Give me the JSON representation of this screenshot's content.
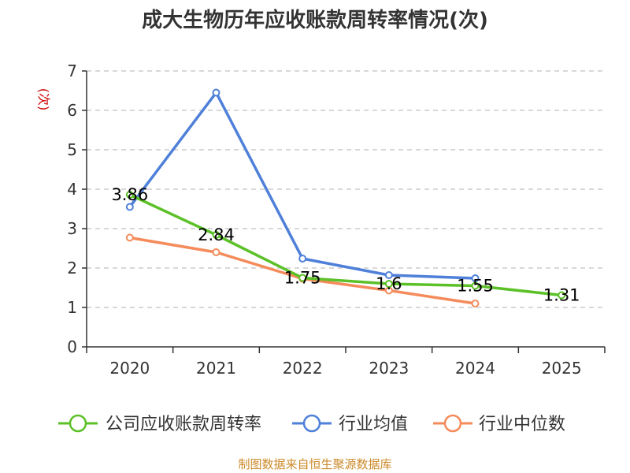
{
  "chart_data": {
    "type": "line",
    "title": "成大生物历年应收账款周转率情况(次)",
    "ylabel": "(次)",
    "xlabel": "",
    "categories": [
      "2020",
      "2021",
      "2022",
      "2023",
      "2024",
      "2025"
    ],
    "ylim": [
      0,
      7
    ],
    "yticks": [
      "0",
      "1",
      "2",
      "3",
      "4",
      "5",
      "6",
      "7"
    ],
    "grid": true,
    "legend_position": "bottom",
    "series": [
      {
        "name": "公司应收账款周转率",
        "color": "#5cc128",
        "values": [
          3.86,
          2.84,
          1.75,
          1.6,
          1.55,
          1.31
        ],
        "data_labels": [
          "3.86",
          "2.84",
          "1.75",
          "1.6",
          "1.55",
          "1.31"
        ]
      },
      {
        "name": "行业均值",
        "color": "#4f80d9",
        "values": [
          3.55,
          6.45,
          2.24,
          1.82,
          1.74,
          null
        ]
      },
      {
        "name": "行业中位数",
        "color": "#f58b5b",
        "values": [
          2.77,
          2.4,
          1.73,
          1.43,
          1.1,
          null
        ]
      }
    ]
  },
  "source_text": "制图数据来自恒生聚源数据库",
  "colors": {
    "ylabel": "#cc0000",
    "source": "#cc8a2a",
    "axis": "#333333",
    "grid": "#cccccc"
  }
}
